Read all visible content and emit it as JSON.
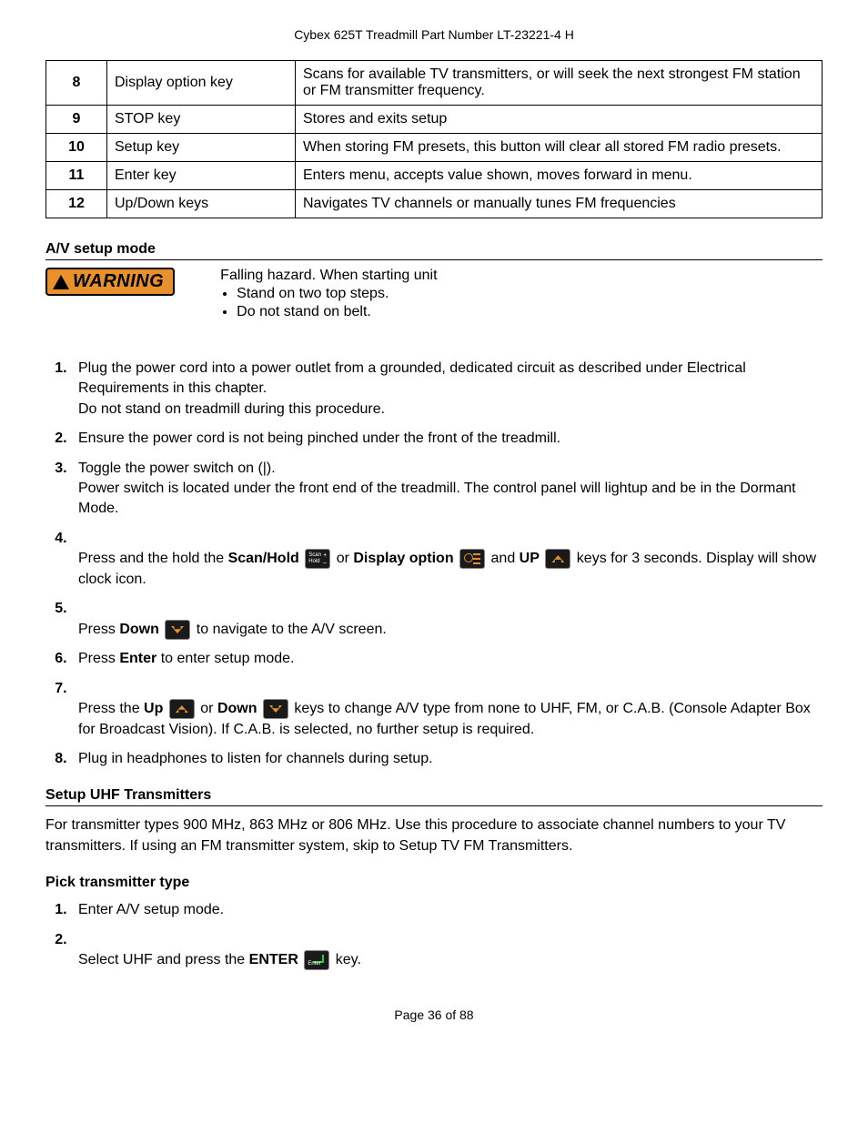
{
  "header": "Cybex 625T Treadmill Part Number LT-23221-4 H",
  "table": {
    "rows": [
      {
        "num": "8",
        "name": "Display option key",
        "desc": "Scans for available TV transmitters, or will seek the next strongest FM station or FM transmitter frequency."
      },
      {
        "num": "9",
        "name": "STOP key",
        "desc": "Stores and exits setup"
      },
      {
        "num": "10",
        "name": "Setup key",
        "desc": "When storing FM presets, this button will clear all stored FM radio presets."
      },
      {
        "num": "11",
        "name": "Enter key",
        "desc": "Enters menu, accepts value shown, moves forward in menu."
      },
      {
        "num": "12",
        "name": "Up/Down keys",
        "desc": "Navigates TV channels or manually tunes FM frequencies"
      }
    ]
  },
  "section_av": {
    "heading": "A/V setup mode",
    "warning_label": "WARNING",
    "warning_badge_color": "#e8912c",
    "warning_lead": "Falling hazard. When starting unit",
    "warning_bullets": [
      "Stand on two top steps.",
      "Do not stand on belt."
    ],
    "steps": {
      "s1a": "Plug the power cord into a power outlet from a grounded, dedicated circuit as described under Electrical Requirements in this chapter.",
      "s1b": "Do not stand on treadmill during this procedure.",
      "s2": "Ensure the power cord is not being pinched under the front of the treadmill.",
      "s3a": "Toggle the power switch on (|).",
      "s3b": "Power switch is located under the front end of the treadmill. The control panel will lightup and be in the Dormant Mode.",
      "s4_pre": "Press and the hold the ",
      "s4_sh": "Scan/Hold",
      "s4_or1": " or ",
      "s4_do": "Display option",
      "s4_and": " and ",
      "s4_up": "UP",
      "s4_post": " keys for 3 seconds. Display will show clock icon.",
      "s5_pre": "Press ",
      "s5_down": "Down",
      "s5_post": " to navigate to the A/V screen.",
      "s6_pre": "Press ",
      "s6_enter": "Enter",
      "s6_post": " to enter setup mode.",
      "s7_pre": "Press the ",
      "s7_up": "Up",
      "s7_or": " or ",
      "s7_down": "Down",
      "s7_post": " keys to change A/V type from none to UHF, FM, or C.A.B. (Console Adapter Box for Broadcast Vision). If C.A.B. is selected, no further setup is required.",
      "s8": "Plug in headphones to listen for channels during setup."
    }
  },
  "section_uhf": {
    "heading": "Setup UHF Transmitters",
    "para": "For transmitter types 900 MHz, 863 MHz or 806 MHz. Use this procedure to associate channel numbers to your TV transmitters. If using an FM transmitter system, skip to Setup TV FM Transmitters."
  },
  "section_pick": {
    "heading": "Pick transmitter type",
    "s1": "Enter A/V setup mode.",
    "s2_pre": "Select UHF and press the ",
    "s2_enter": "ENTER",
    "s2_post": " key."
  },
  "footer": "Page 36 of 88"
}
